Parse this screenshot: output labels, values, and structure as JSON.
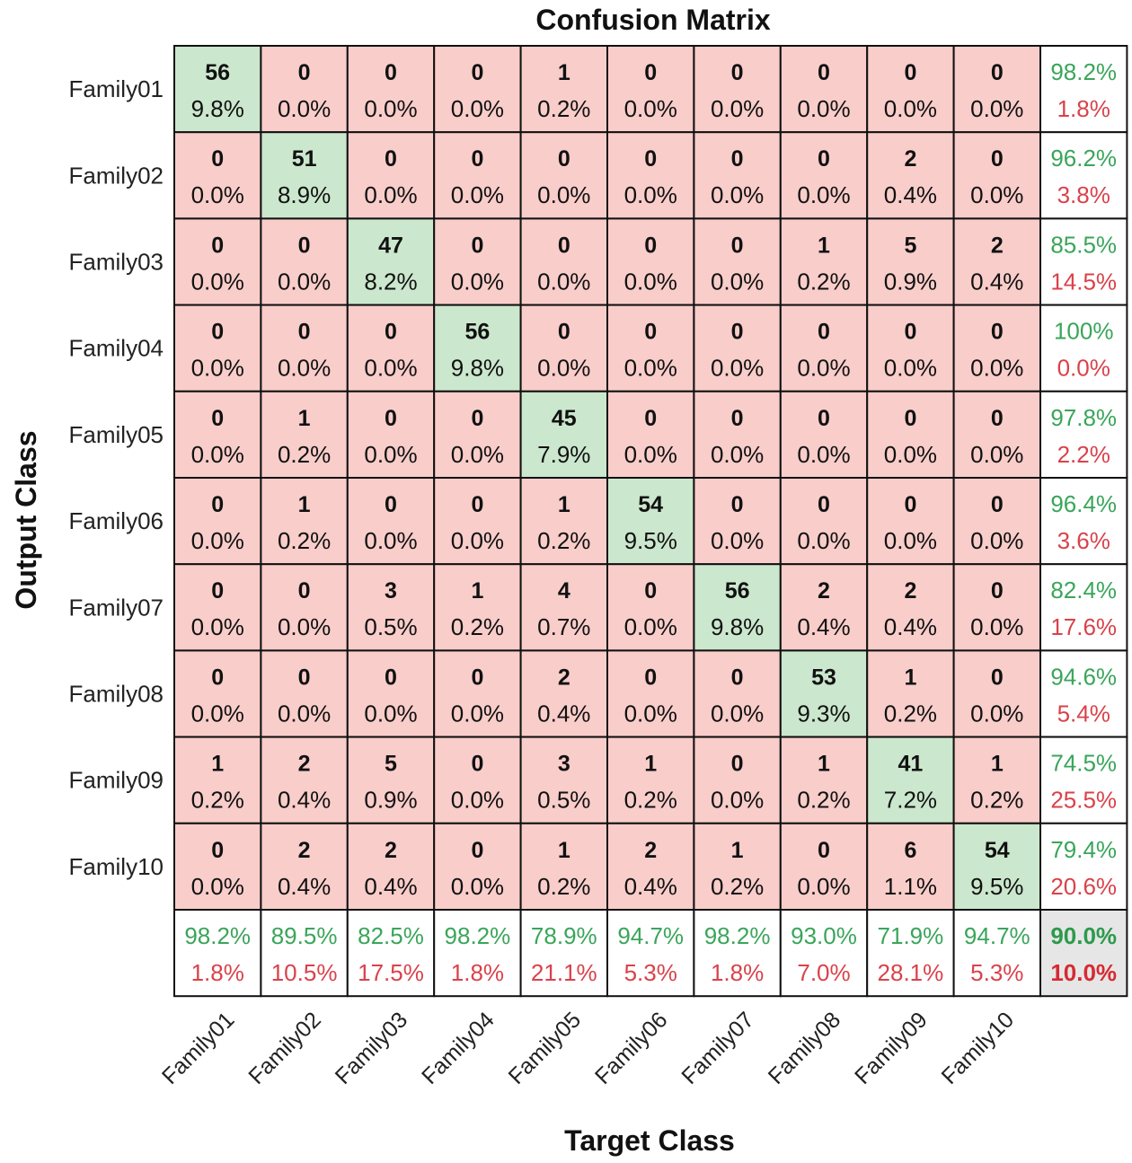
{
  "chart_data": {
    "type": "heatmap",
    "title": "Confusion Matrix",
    "xlabel": "Target Class",
    "ylabel": "Output Class",
    "classes": [
      "Family01",
      "Family02",
      "Family03",
      "Family04",
      "Family05",
      "Family06",
      "Family07",
      "Family08",
      "Family09",
      "Family10"
    ],
    "counts": [
      [
        56,
        0,
        0,
        0,
        1,
        0,
        0,
        0,
        0,
        0
      ],
      [
        0,
        51,
        0,
        0,
        0,
        0,
        0,
        0,
        2,
        0
      ],
      [
        0,
        0,
        47,
        0,
        0,
        0,
        0,
        1,
        5,
        2
      ],
      [
        0,
        0,
        0,
        56,
        0,
        0,
        0,
        0,
        0,
        0
      ],
      [
        0,
        1,
        0,
        0,
        45,
        0,
        0,
        0,
        0,
        0
      ],
      [
        0,
        1,
        0,
        0,
        1,
        54,
        0,
        0,
        0,
        0
      ],
      [
        0,
        0,
        3,
        1,
        4,
        0,
        56,
        2,
        2,
        0
      ],
      [
        0,
        0,
        0,
        0,
        2,
        0,
        0,
        53,
        1,
        0
      ],
      [
        1,
        2,
        5,
        0,
        3,
        1,
        0,
        1,
        41,
        1
      ],
      [
        0,
        2,
        2,
        0,
        1,
        2,
        1,
        0,
        6,
        54
      ]
    ],
    "percentages": [
      [
        "9.8%",
        "0.0%",
        "0.0%",
        "0.0%",
        "0.2%",
        "0.0%",
        "0.0%",
        "0.0%",
        "0.0%",
        "0.0%"
      ],
      [
        "0.0%",
        "8.9%",
        "0.0%",
        "0.0%",
        "0.0%",
        "0.0%",
        "0.0%",
        "0.0%",
        "0.4%",
        "0.0%"
      ],
      [
        "0.0%",
        "0.0%",
        "8.2%",
        "0.0%",
        "0.0%",
        "0.0%",
        "0.0%",
        "0.2%",
        "0.9%",
        "0.4%"
      ],
      [
        "0.0%",
        "0.0%",
        "0.0%",
        "9.8%",
        "0.0%",
        "0.0%",
        "0.0%",
        "0.0%",
        "0.0%",
        "0.0%"
      ],
      [
        "0.0%",
        "0.2%",
        "0.0%",
        "0.0%",
        "7.9%",
        "0.0%",
        "0.0%",
        "0.0%",
        "0.0%",
        "0.0%"
      ],
      [
        "0.0%",
        "0.2%",
        "0.0%",
        "0.0%",
        "0.2%",
        "9.5%",
        "0.0%",
        "0.0%",
        "0.0%",
        "0.0%"
      ],
      [
        "0.0%",
        "0.0%",
        "0.5%",
        "0.2%",
        "0.7%",
        "0.0%",
        "9.8%",
        "0.4%",
        "0.4%",
        "0.0%"
      ],
      [
        "0.0%",
        "0.0%",
        "0.0%",
        "0.0%",
        "0.4%",
        "0.0%",
        "0.0%",
        "9.3%",
        "0.2%",
        "0.0%"
      ],
      [
        "0.2%",
        "0.4%",
        "0.9%",
        "0.0%",
        "0.5%",
        "0.2%",
        "0.0%",
        "0.2%",
        "7.2%",
        "0.2%"
      ],
      [
        "0.0%",
        "0.4%",
        "0.4%",
        "0.0%",
        "0.2%",
        "0.4%",
        "0.2%",
        "0.0%",
        "1.1%",
        "9.5%"
      ]
    ],
    "row_summary": [
      {
        "correct": "98.2%",
        "error": "1.8%"
      },
      {
        "correct": "96.2%",
        "error": "3.8%"
      },
      {
        "correct": "85.5%",
        "error": "14.5%"
      },
      {
        "correct": "100%",
        "error": "0.0%"
      },
      {
        "correct": "97.8%",
        "error": "2.2%"
      },
      {
        "correct": "96.4%",
        "error": "3.6%"
      },
      {
        "correct": "82.4%",
        "error": "17.6%"
      },
      {
        "correct": "94.6%",
        "error": "5.4%"
      },
      {
        "correct": "74.5%",
        "error": "25.5%"
      },
      {
        "correct": "79.4%",
        "error": "20.6%"
      }
    ],
    "col_summary": [
      {
        "correct": "98.2%",
        "error": "1.8%"
      },
      {
        "correct": "89.5%",
        "error": "10.5%"
      },
      {
        "correct": "82.5%",
        "error": "17.5%"
      },
      {
        "correct": "98.2%",
        "error": "1.8%"
      },
      {
        "correct": "78.9%",
        "error": "21.1%"
      },
      {
        "correct": "94.7%",
        "error": "5.3%"
      },
      {
        "correct": "98.2%",
        "error": "1.8%"
      },
      {
        "correct": "93.0%",
        "error": "7.0%"
      },
      {
        "correct": "71.9%",
        "error": "28.1%"
      },
      {
        "correct": "94.7%",
        "error": "5.3%"
      }
    ],
    "overall": {
      "correct": "90.0%",
      "error": "10.0%"
    },
    "colors": {
      "diagonal": "#cbe7cd",
      "off_diagonal": "#f8cdca",
      "summary": "#ffffff",
      "overall": "#e6e6e6",
      "grid": "#111111",
      "correct_text": "#3aa55a",
      "error_text": "#d9424a"
    }
  }
}
